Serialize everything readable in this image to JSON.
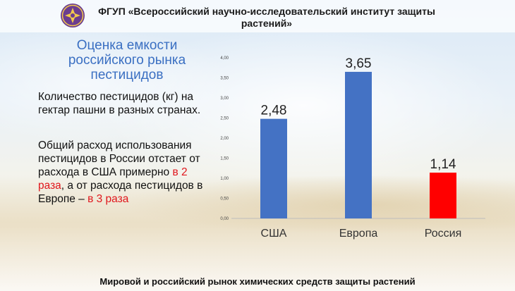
{
  "header": {
    "title": "ФГУП «Всероссийский научно-исследовательский институт защиты растений»",
    "logo_icon": "emblem-icon"
  },
  "slide": {
    "title": "Оценка емкости российского рынка пестицидов",
    "paragraph1": "Количество пестицидов (кг) на гектар пашни в разных странах.",
    "paragraph2_part1": "Общий расход использования  пестицидов в России отстает от расхода в США примерно ",
    "paragraph2_red1": "в 2 раза",
    "paragraph2_part2": ", а от расхода пестицидов в Европе – ",
    "paragraph2_red2": "в 3 раза"
  },
  "footer": {
    "text": "Мировой и российский рынок химических средств защиты растений"
  },
  "chart_data": {
    "type": "bar",
    "categories": [
      "США",
      "Европа",
      "Россия"
    ],
    "values": [
      2.48,
      3.65,
      1.14
    ],
    "value_labels": [
      "2,48",
      "3,65",
      "1,14"
    ],
    "colors": [
      "#4472c4",
      "#4472c4",
      "#ff0000"
    ],
    "ylim": [
      0,
      4.0
    ],
    "yticks": [
      0,
      0.5,
      1.0,
      1.5,
      2.0,
      2.5,
      3.0,
      3.5,
      4.0
    ],
    "ytick_labels": [
      "0,00",
      "0,50",
      "1,00",
      "1,50",
      "2,00",
      "2,50",
      "3,00",
      "3,50",
      "4,00"
    ],
    "grid": false,
    "legend": "none"
  }
}
